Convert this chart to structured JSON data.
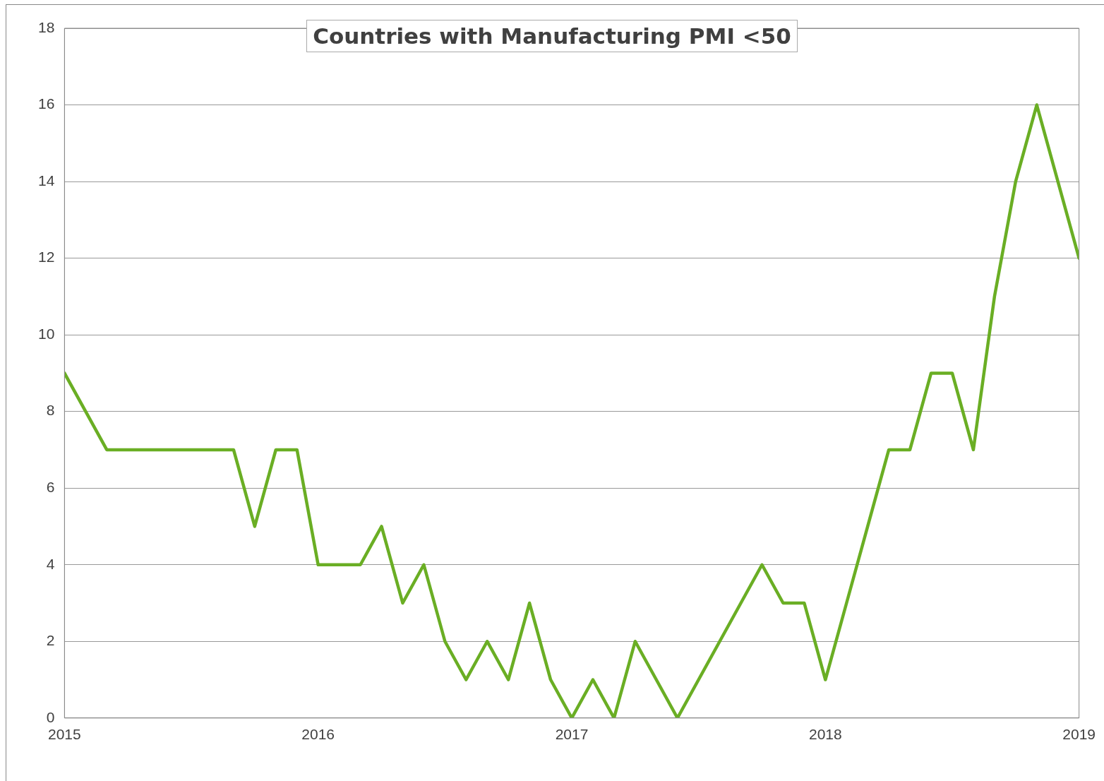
{
  "chart_data": {
    "type": "line",
    "title": "Countries with Manufacturing PMI <50",
    "x": [
      "2015-01",
      "2015-02",
      "2015-03",
      "2015-04",
      "2015-05",
      "2015-06",
      "2015-07",
      "2015-08",
      "2015-09",
      "2015-10",
      "2015-11",
      "2015-12",
      "2016-01",
      "2016-02",
      "2016-03",
      "2016-04",
      "2016-05",
      "2016-06",
      "2016-07",
      "2016-08",
      "2016-09",
      "2016-10",
      "2016-11",
      "2016-12",
      "2017-01",
      "2017-02",
      "2017-03",
      "2017-04",
      "2017-05",
      "2017-06",
      "2017-07",
      "2017-08",
      "2017-09",
      "2017-10",
      "2017-11",
      "2017-12",
      "2018-01",
      "2018-02",
      "2018-03",
      "2018-04",
      "2018-05",
      "2018-06",
      "2018-07",
      "2018-08",
      "2018-09",
      "2018-10",
      "2018-11",
      "2018-12",
      "2019-01"
    ],
    "series": [
      {
        "color": "#6aae24",
        "values": [
          9,
          8,
          7,
          7,
          7,
          7,
          7,
          7,
          7,
          5,
          7,
          7,
          4,
          4,
          4,
          5,
          3,
          4,
          2,
          1,
          2,
          1,
          3,
          1,
          0,
          1,
          0,
          2,
          1,
          0,
          1,
          2,
          3,
          4,
          3,
          3,
          1,
          3,
          5,
          7,
          7,
          9,
          9,
          7,
          11,
          14,
          16,
          14,
          12
        ]
      }
    ],
    "xlim": [
      "2015-01",
      "2019-01"
    ],
    "xticks": [
      "2015",
      "2016",
      "2017",
      "2018",
      "2019"
    ],
    "ylim": [
      0,
      18
    ],
    "yticks": [
      0,
      2,
      4,
      6,
      8,
      10,
      12,
      14,
      16,
      18
    ],
    "grid": "y",
    "legend": false,
    "marker": "none",
    "line_style": "solid"
  }
}
